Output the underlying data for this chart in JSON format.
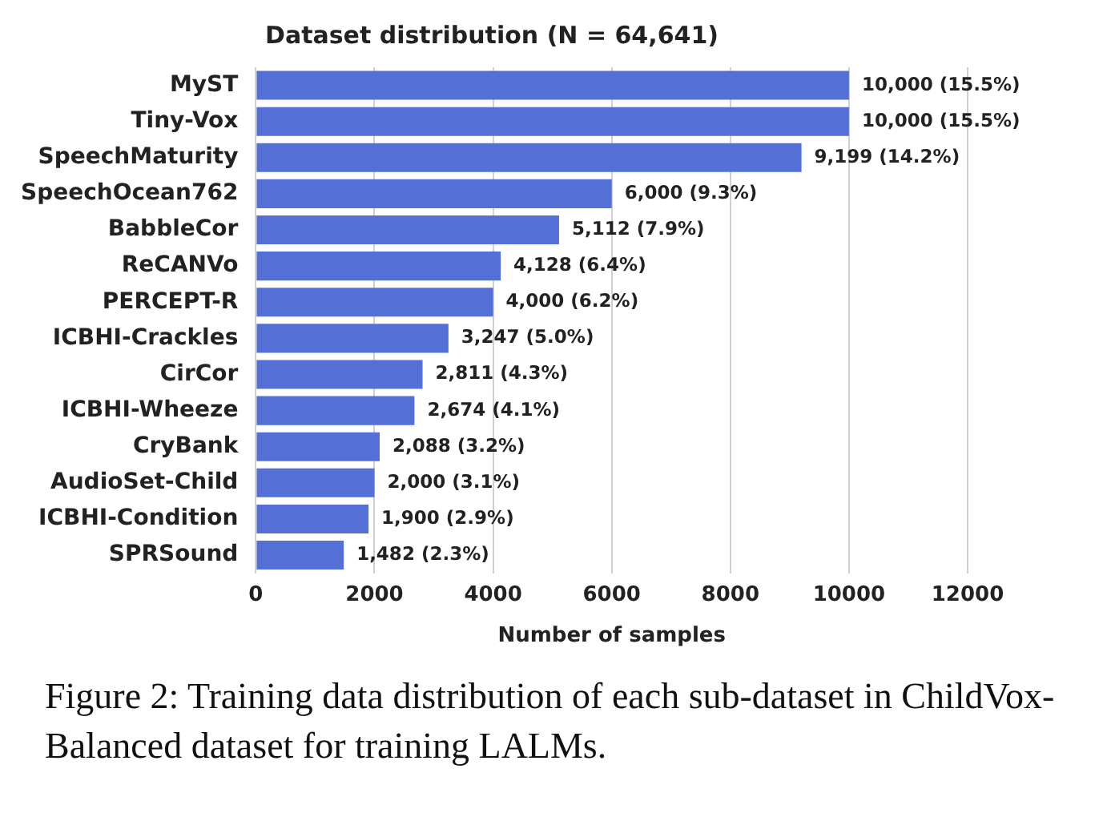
{
  "chart_data": {
    "type": "bar",
    "orientation": "horizontal",
    "title": "Dataset distribution (N = 64,641)",
    "xlabel": "Number of samples",
    "categories": [
      "MyST",
      "Tiny-Vox",
      "SpeechMaturity",
      "SpeechOcean762",
      "BabbleCor",
      "ReCANVo",
      "PERCEPT-R",
      "ICBHI-Crackles",
      "CirCor",
      "ICBHI-Wheeze",
      "CryBank",
      "AudioSet-Child",
      "ICBHI-Condition",
      "SPRSound"
    ],
    "values": [
      10000,
      10000,
      9199,
      6000,
      5112,
      4128,
      4000,
      3247,
      2811,
      2674,
      2088,
      2000,
      1900,
      1482
    ],
    "value_labels": [
      "10,000 (15.5%)",
      "10,000 (15.5%)",
      "9,199 (14.2%)",
      "6,000 (9.3%)",
      "5,112 (7.9%)",
      "4,128 (6.4%)",
      "4,000 (6.2%)",
      "3,247 (5.0%)",
      "2,811 (4.3%)",
      "2,674 (4.1%)",
      "2,088 (3.2%)",
      "2,000 (3.1%)",
      "1,900 (2.9%)",
      "1,482 (2.3%)"
    ],
    "color": "#5470d6",
    "xlim": [
      0,
      12000
    ],
    "xticks": [
      0,
      2000,
      4000,
      6000,
      8000,
      10000,
      12000
    ],
    "grid": "x",
    "annotations": [
      "Figure 2: Training data distribution of each sub-dataset in ChildVox-Balanced dataset for training LALMs."
    ]
  }
}
